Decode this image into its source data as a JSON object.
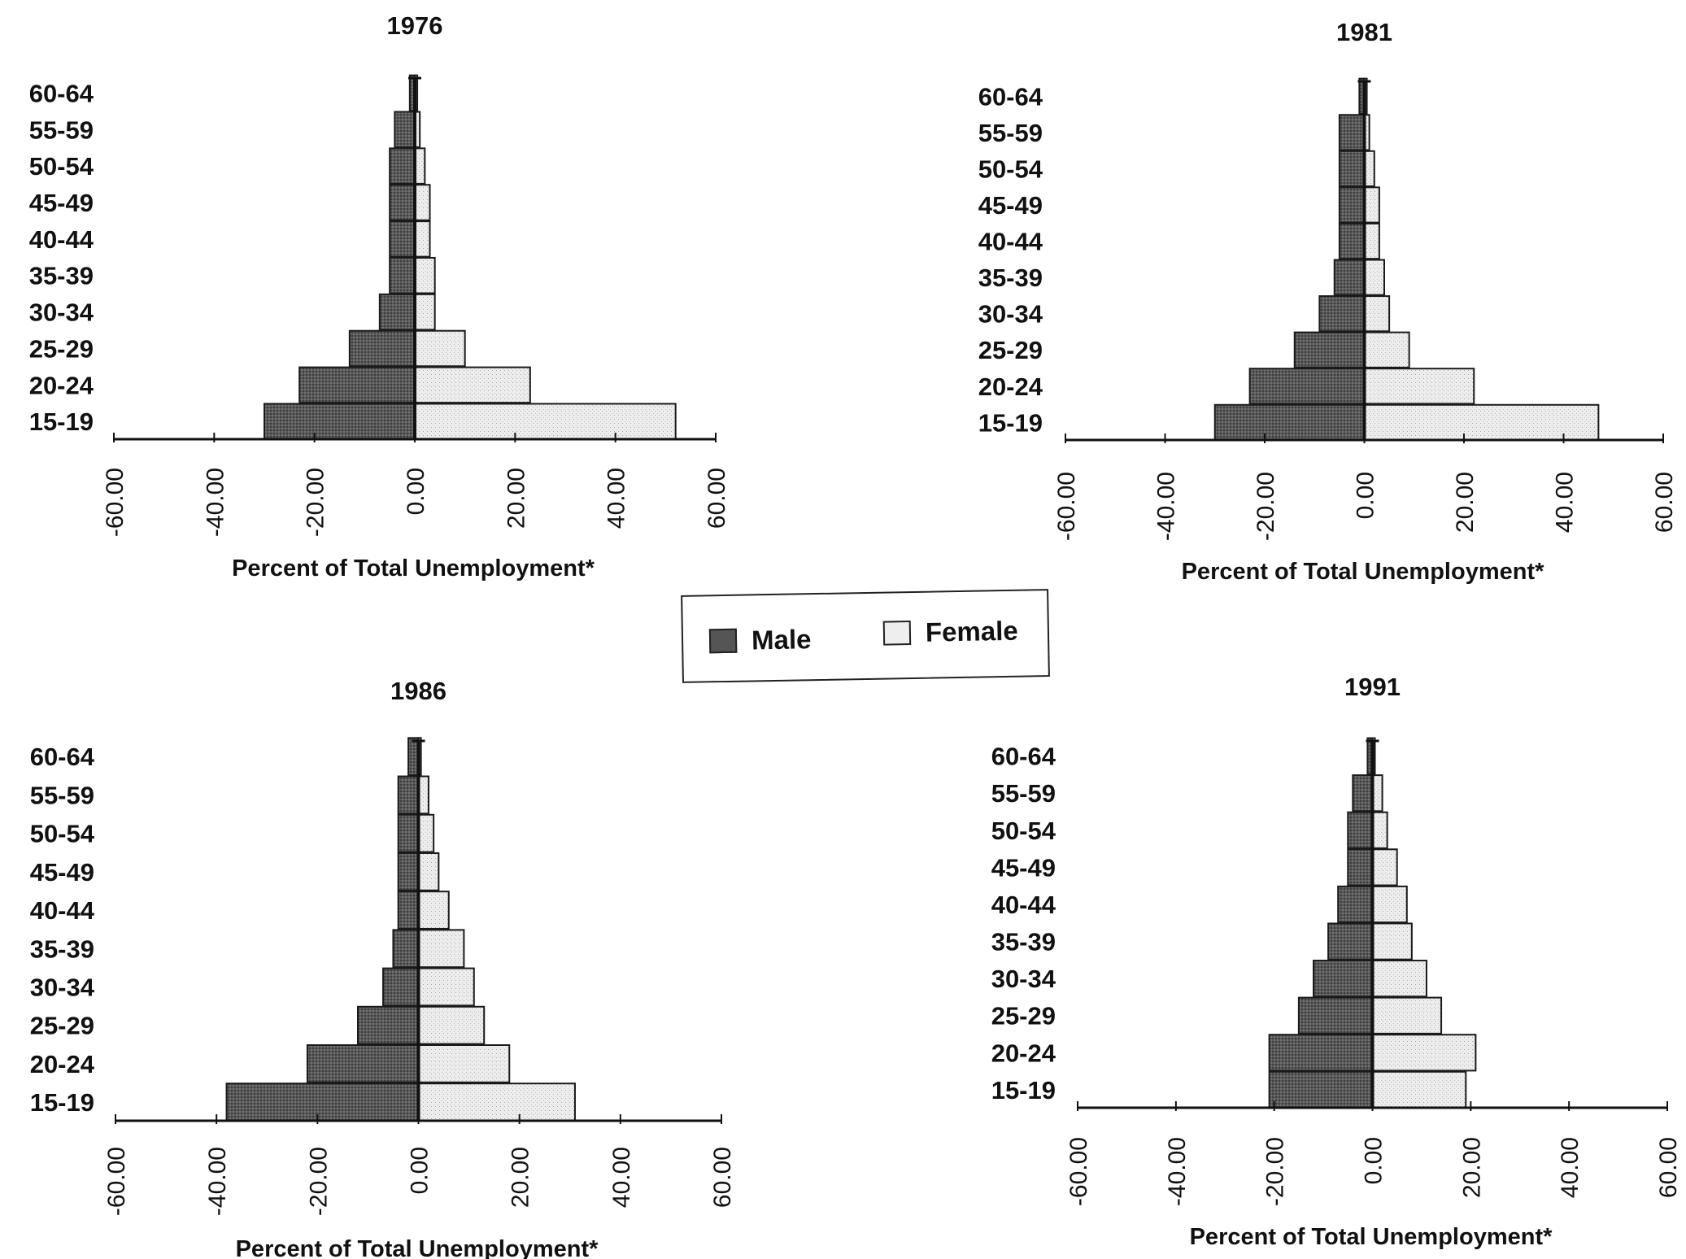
{
  "legend": {
    "male_label": "Male",
    "female_label": "Female",
    "male_color": "#555555",
    "female_color": "#e6e6e6"
  },
  "chart_data": [
    {
      "type": "bar",
      "orientation": "horizontal",
      "title": "1976",
      "xlabel": "Percent of Total Unemployment*",
      "xlim": [
        -60,
        60
      ],
      "xticks": [
        "-60.00",
        "-40.00",
        "-20.00",
        "0.00",
        "20.00",
        "40.00",
        "60.00"
      ],
      "categories": [
        "15-19",
        "20-24",
        "25-29",
        "30-34",
        "35-39",
        "40-44",
        "45-49",
        "50-54",
        "55-59",
        "60-64"
      ],
      "series": [
        {
          "name": "Male",
          "values": [
            -30,
            -23,
            -13,
            -7,
            -5,
            -5,
            -5,
            -5,
            -4,
            -1
          ]
        },
        {
          "name": "Female",
          "values": [
            52,
            23,
            10,
            4,
            4,
            3,
            3,
            2,
            1,
            0.5
          ]
        }
      ]
    },
    {
      "type": "bar",
      "orientation": "horizontal",
      "title": "1981",
      "xlabel": "Percent of Total Unemployment*",
      "xlim": [
        -60,
        60
      ],
      "xticks": [
        "-60.00",
        "-40.00",
        "-20.00",
        "0.00",
        "20.00",
        "40.00",
        "60.00"
      ],
      "categories": [
        "15-19",
        "20-24",
        "25-29",
        "30-34",
        "35-39",
        "40-44",
        "45-49",
        "50-54",
        "55-59",
        "60-64"
      ],
      "series": [
        {
          "name": "Male",
          "values": [
            -30,
            -23,
            -14,
            -9,
            -6,
            -5,
            -5,
            -5,
            -5,
            -1
          ]
        },
        {
          "name": "Female",
          "values": [
            47,
            22,
            9,
            5,
            4,
            3,
            3,
            2,
            1,
            0.5
          ]
        }
      ]
    },
    {
      "type": "bar",
      "orientation": "horizontal",
      "title": "1986",
      "xlabel": "Percent of Total Unemployment*",
      "xlim": [
        -60,
        60
      ],
      "xticks": [
        "-60.00",
        "-40.00",
        "-20.00",
        "0.00",
        "20.00",
        "40.00",
        "60.00"
      ],
      "categories": [
        "15-19",
        "20-24",
        "25-29",
        "30-34",
        "35-39",
        "40-44",
        "45-49",
        "50-54",
        "55-59",
        "60-64"
      ],
      "series": [
        {
          "name": "Male",
          "values": [
            -38,
            -22,
            -12,
            -7,
            -5,
            -4,
            -4,
            -4,
            -4,
            -2
          ]
        },
        {
          "name": "Female",
          "values": [
            31,
            18,
            13,
            11,
            9,
            6,
            4,
            3,
            2,
            0.5
          ]
        }
      ]
    },
    {
      "type": "bar",
      "orientation": "horizontal",
      "title": "1991",
      "xlabel": "Percent of Total Unemployment*",
      "xlim": [
        -60,
        60
      ],
      "xticks": [
        "-60.00",
        "-40.00",
        "-20.00",
        "0.00",
        "20.00",
        "40.00",
        "60.00"
      ],
      "categories": [
        "15-19",
        "20-24",
        "25-29",
        "30-34",
        "35-39",
        "40-44",
        "45-49",
        "50-54",
        "55-59",
        "60-64"
      ],
      "series": [
        {
          "name": "Male",
          "values": [
            -21,
            -21,
            -15,
            -12,
            -9,
            -7,
            -5,
            -5,
            -4,
            -1
          ]
        },
        {
          "name": "Female",
          "values": [
            19,
            21,
            14,
            11,
            8,
            7,
            5,
            3,
            2,
            0.5
          ]
        }
      ]
    }
  ]
}
